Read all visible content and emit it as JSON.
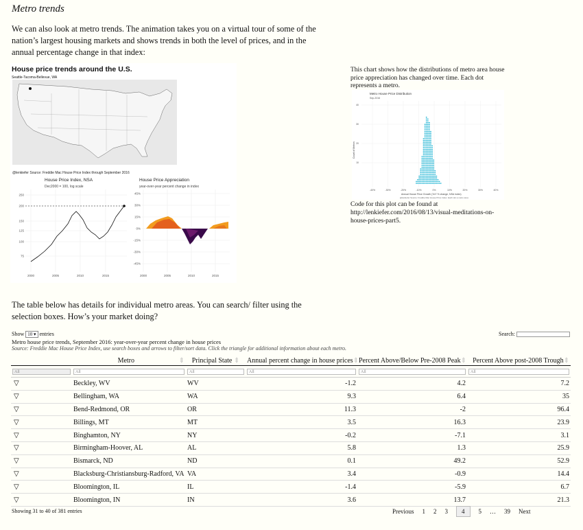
{
  "section_title": "Metro trends",
  "intro": "We can also look at metro trends. The animation takes you on a virtual tour of some of the nation’s largest housing markets and shows trends in both the level of prices, and in the annual percentage change in that index:",
  "anim": {
    "title": "House price trends around the U.S.",
    "location": "Seattle-Tacoma-Bellevue, WA",
    "source": "@lenkiefer Source: Freddie Mac House Price Index through September 2016",
    "left_title": "House Price Index, NSA",
    "left_sub": "Dec2000 = 100, log scale",
    "left_yticks": [
      "250",
      "200",
      "150",
      "125",
      "100",
      "75"
    ],
    "left_xticks": [
      "2000",
      "2005",
      "2010",
      "2015"
    ],
    "right_title": "House Price Appreciation",
    "right_sub": "year-over-year percent change in index",
    "right_yticks": [
      "45%",
      "30%",
      "15%",
      "0%",
      "-15%",
      "-30%",
      "-45%"
    ],
    "right_xticks": [
      "2000",
      "2005",
      "2010",
      "2015"
    ]
  },
  "side_text": "This chart shows how the distributions of metro area house price appreciation has changed over time. Each dot represents a metro.",
  "dist": {
    "title": "Metro House Price Distribution",
    "subtitle": "Sep-2016",
    "ylabel": "Count of Metros",
    "yticks": [
      "40",
      "30",
      "20",
      "10"
    ],
    "xticks": [
      "-40%",
      "-30%",
      "-20%",
      "-10%",
      "0%",
      "10%",
      "20%",
      "30%",
      "40%"
    ],
    "xlabel": "Annual House Price Growth (YoY % change, NSA index)",
    "source": "@lenkiefer Source: Freddie Mac House Price Index. Each dot a metro area"
  },
  "code_text": "Code for this plot can be found at http://lenkiefer.com/2016/08/13/visual-meditations-on-house-prices-part5.",
  "table_intro": "The table below has details for individual metro areas. You can search/ filter using the selection boxes. How’s your market doing?",
  "table": {
    "show_label": "Show",
    "length_value": "10",
    "entries_label": "entries",
    "search_label": "Search:",
    "caption": "Metro house price trends, September 2016: year-over-year percent change in house prices",
    "caption_source": "Source: Freddie Mac House Price Index, use search boxes and arrows to filter/sort data. Click the triangle for additional information about each metro.",
    "headers": [
      "",
      "Metro",
      "Principal State",
      "Annual percent change in house prices",
      "Percent Above/Below Pre-2008 Peak",
      "Percent Above post-2008 Trough"
    ],
    "filter_placeholder": "All",
    "rows": [
      [
        "Beckley, WV",
        "WV",
        "-1.2",
        "4.2",
        "7.2"
      ],
      [
        "Bellingham, WA",
        "WA",
        "9.3",
        "6.4",
        "35"
      ],
      [
        "Bend-Redmond, OR",
        "OR",
        "11.3",
        "-2",
        "96.4"
      ],
      [
        "Billings, MT",
        "MT",
        "3.5",
        "16.3",
        "23.9"
      ],
      [
        "Binghamton, NY",
        "NY",
        "-0.2",
        "-7.1",
        "3.1"
      ],
      [
        "Birmingham-Hoover, AL",
        "AL",
        "5.8",
        "1.3",
        "25.9"
      ],
      [
        "Bismarck, ND",
        "ND",
        "0.1",
        "49.2",
        "52.9"
      ],
      [
        "Blacksburg-Christiansburg-Radford, VA",
        "VA",
        "3.4",
        "-0.9",
        "14.4"
      ],
      [
        "Bloomington, IL",
        "IL",
        "-1.4",
        "-5.9",
        "6.7"
      ],
      [
        "Bloomington, IN",
        "IN",
        "3.6",
        "13.7",
        "21.3"
      ]
    ],
    "expand_glyph": "▽",
    "info": "Showing 31 to 40 of 381 entries",
    "pager": [
      "Previous",
      "1",
      "2",
      "3",
      "4",
      "5",
      "…",
      "39",
      "Next"
    ],
    "current_page": "4"
  }
}
